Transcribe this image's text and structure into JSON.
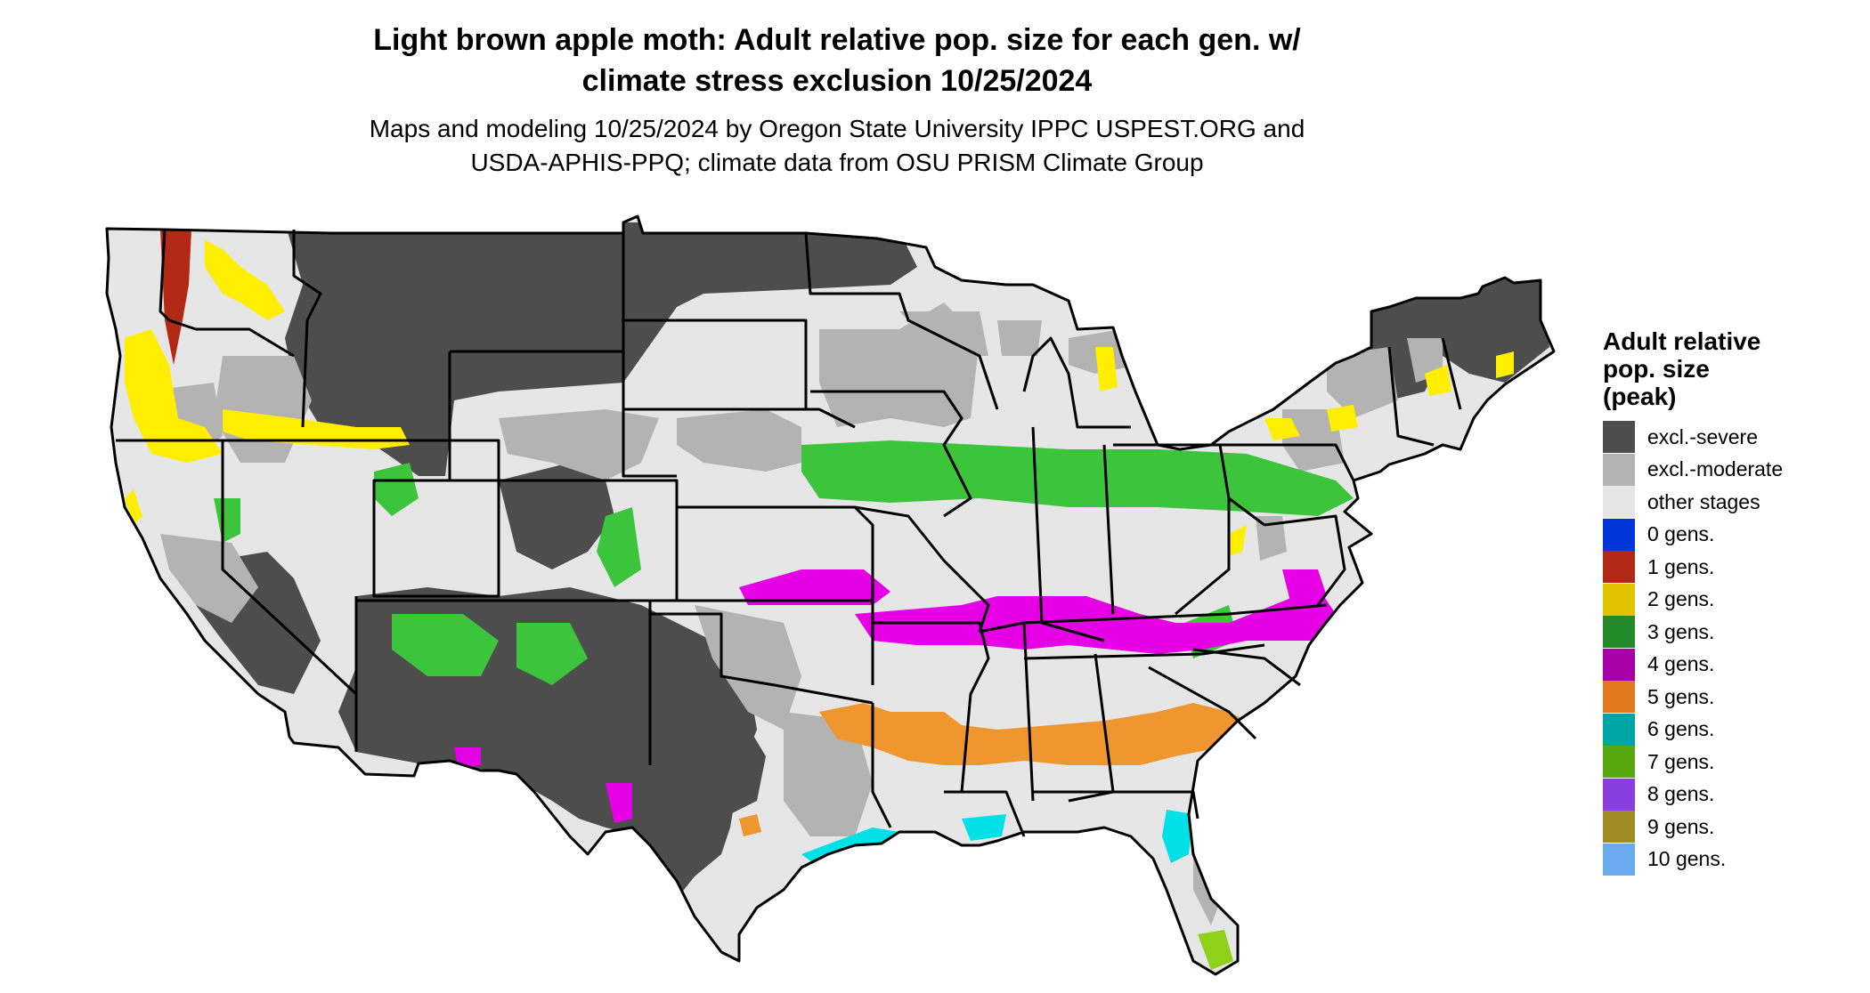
{
  "title": {
    "line1": "Light brown apple moth: Adult relative pop. size for each gen. w/",
    "line2": "climate stress exclusion 10/25/2024"
  },
  "subtitle": {
    "line1": "Maps and modeling 10/25/2024 by Oregon State University IPPC USPEST.ORG and",
    "line2": "USDA-APHIS-PPQ; climate data from OSU PRISM Climate Group"
  },
  "legend": {
    "title_line1": "Adult relative",
    "title_line2": "pop. size",
    "title_line3": "(peak)",
    "items": [
      {
        "label": "excl.-severe",
        "color": "#4d4d4d"
      },
      {
        "label": "excl.-moderate",
        "color": "#b3b3b3"
      },
      {
        "label": "other stages",
        "color": "#e6e6e6"
      },
      {
        "label": "0 gens.",
        "color": "#0036d9"
      },
      {
        "label": "1 gens.",
        "color": "#b22a15"
      },
      {
        "label": "2 gens.",
        "color": "#e0c400"
      },
      {
        "label": "3 gens.",
        "color": "#238b2a"
      },
      {
        "label": "4 gens.",
        "color": "#a800a8"
      },
      {
        "label": "5 gens.",
        "color": "#e0781c"
      },
      {
        "label": "6 gens.",
        "color": "#00a6a6"
      },
      {
        "label": "7 gens.",
        "color": "#5aa80f"
      },
      {
        "label": "8 gens.",
        "color": "#8a3ee0"
      },
      {
        "label": "9 gens.",
        "color": "#a08c24"
      },
      {
        "label": "10 gens.",
        "color": "#6aabf0"
      }
    ]
  },
  "map_colors": {
    "land": "#e6e6e6",
    "severe": "#4d4d4d",
    "moderate": "#b3b3b3",
    "border": "#000000",
    "gen2": "#ffee00",
    "gen3": "#3cc43c",
    "gen4": "#e600e6",
    "gen5": "#f0962e",
    "gen6": "#00e0e6",
    "gen7": "#8ed01a"
  }
}
